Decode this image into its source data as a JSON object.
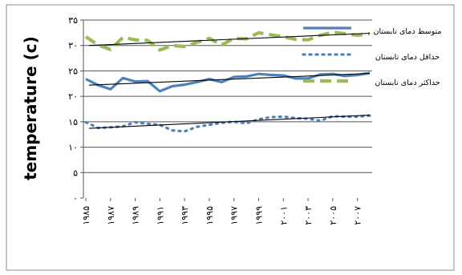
{
  "chart_data": {
    "type": "line",
    "ylabel": "temperature (c)",
    "xlabel": "",
    "ylim": [
      0,
      35
    ],
    "y_ticks": [
      0,
      5,
      10,
      15,
      20,
      25,
      30,
      35
    ],
    "y_tick_labels": [
      "۰",
      "۵",
      "۱۰",
      "۱۵",
      "۲۰",
      "۲۵",
      "۳۰",
      "۳۵"
    ],
    "x": [
      1985,
      1986,
      1987,
      1988,
      1989,
      1990,
      1991,
      1992,
      1993,
      1994,
      1995,
      1996,
      1997,
      1998,
      1999,
      2000,
      2001,
      2002,
      2003,
      2004,
      2005,
      2006,
      2007,
      2008
    ],
    "x_tick_values": [
      1985,
      1987,
      1989,
      1991,
      1993,
      1995,
      1997,
      1999,
      2001,
      2003,
      2005,
      2007
    ],
    "x_tick_labels": [
      "۱۹۸۵",
      "۱۹۸۷",
      "۱۹۸۹",
      "۱۹۹۱",
      "۱۹۹۳",
      "۱۹۹۵",
      "۱۹۹۷",
      "۱۹۹۹",
      "۲۰۰۱",
      "۲۰۰۳",
      "۲۰۰۵",
      "۲۰۰۷"
    ],
    "grid": {
      "horizontal": true,
      "vertical": false
    },
    "legend_position": "top-right",
    "series": [
      {
        "name": "متوسط دمای تابستان",
        "style": "solid",
        "color": "#4F81BD",
        "values": [
          23.4,
          22.2,
          21.4,
          23.6,
          22.9,
          23.0,
          21.0,
          22.0,
          22.3,
          22.8,
          23.4,
          22.8,
          23.8,
          23.9,
          24.4,
          24.2,
          24.1,
          23.5,
          23.5,
          24.3,
          24.4,
          24.0,
          24.2,
          24.6
        ],
        "trend": [
          22.2,
          24.5
        ]
      },
      {
        "name": "حداقل دمای تابستان",
        "style": "dotted",
        "color": "#4F81BD",
        "values": [
          14.9,
          13.8,
          13.9,
          14.1,
          14.9,
          14.6,
          14.4,
          13.3,
          13.1,
          14.0,
          14.4,
          14.8,
          15.0,
          14.7,
          15.5,
          15.9,
          16.0,
          15.7,
          15.6,
          15.2,
          16.1,
          16.0,
          16.0,
          16.2
        ],
        "trend": [
          13.7,
          16.3
        ]
      },
      {
        "name": "حداکثر دمای تابستان",
        "style": "dashed",
        "color": "#9BBB59",
        "values": [
          31.7,
          30.1,
          29.2,
          31.6,
          31.1,
          31.0,
          29.1,
          30.0,
          29.8,
          30.6,
          31.4,
          30.1,
          31.4,
          31.3,
          32.5,
          32.1,
          31.7,
          31.2,
          31.1,
          32.0,
          32.6,
          32.3,
          32.0,
          32.3
        ],
        "trend": [
          30.0,
          32.4
        ]
      }
    ],
    "trend_color": "#000000"
  }
}
